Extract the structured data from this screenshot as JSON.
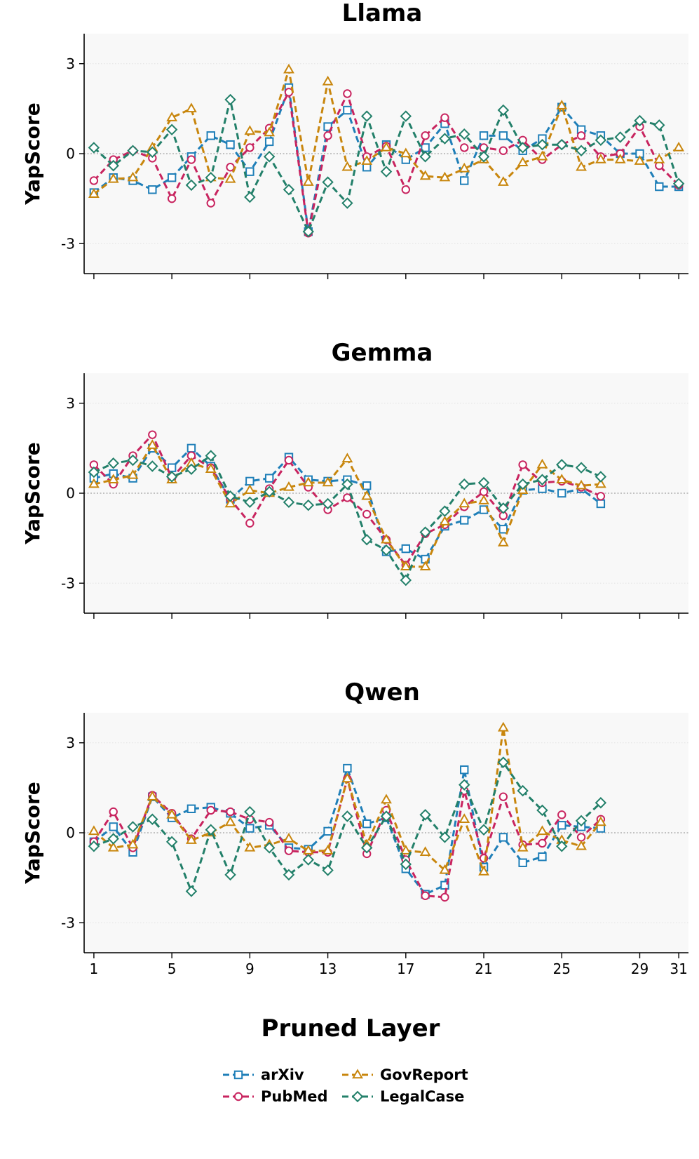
{
  "chart_data": [
    {
      "type": "line",
      "title": "Llama",
      "ylabel": "YapScore",
      "xlabel": "",
      "xlim": [
        0.5,
        31.5
      ],
      "ylim": [
        -4,
        4
      ],
      "yticks": [
        -3,
        0,
        3
      ],
      "ytick_labels": [
        "-3",
        "0",
        "3"
      ],
      "xticks": [
        1,
        5,
        9,
        13,
        17,
        21,
        25,
        29,
        31
      ],
      "xtick_labels": [],
      "zero_line": true,
      "grid": "horizontal-dotted",
      "series": [
        {
          "name": "arXiv",
          "color": "#1f7fb8",
          "marker": "square",
          "x": [
            1,
            2,
            3,
            4,
            5,
            6,
            7,
            8,
            9,
            10,
            11,
            12,
            13,
            14,
            15,
            16,
            17,
            18,
            19,
            20,
            21,
            22,
            23,
            24,
            25,
            26,
            27,
            28,
            29,
            30,
            31
          ],
          "values": [
            -1.3,
            -0.8,
            -0.9,
            -1.2,
            -0.8,
            -0.1,
            0.6,
            0.3,
            -0.6,
            0.4,
            2.2,
            -2.6,
            0.9,
            1.45,
            -0.45,
            0.3,
            -0.2,
            0.2,
            1.0,
            -0.9,
            0.6,
            0.6,
            0.1,
            0.5,
            1.55,
            0.8,
            0.6,
            0.0,
            0.0,
            -1.1,
            -1.1
          ]
        },
        {
          "name": "PubMed",
          "color": "#c8245f",
          "marker": "circle",
          "x": [
            1,
            2,
            3,
            4,
            5,
            6,
            7,
            8,
            9,
            10,
            11,
            12,
            13,
            14,
            15,
            16,
            17,
            18,
            19,
            20,
            21,
            22,
            23,
            24,
            25,
            26,
            27,
            28,
            29,
            30,
            31
          ],
          "values": [
            -0.9,
            -0.2,
            0.1,
            -0.15,
            -1.5,
            -0.2,
            -1.65,
            -0.45,
            0.2,
            0.85,
            2.05,
            -2.65,
            0.6,
            2.0,
            -0.1,
            0.25,
            -1.2,
            0.6,
            1.2,
            0.2,
            0.2,
            0.1,
            0.45,
            -0.2,
            0.3,
            0.6,
            -0.1,
            0.0,
            0.9,
            -0.4,
            -1.05
          ]
        },
        {
          "name": "GovReport",
          "color": "#c8860d",
          "marker": "triangle",
          "x": [
            1,
            2,
            3,
            4,
            5,
            6,
            7,
            8,
            9,
            10,
            11,
            12,
            13,
            14,
            15,
            16,
            17,
            18,
            19,
            20,
            21,
            22,
            23,
            24,
            25,
            26,
            27,
            28,
            29,
            30,
            31
          ],
          "values": [
            -1.35,
            -0.85,
            -0.8,
            0.2,
            1.2,
            1.5,
            -0.8,
            -0.85,
            0.75,
            0.7,
            2.8,
            -0.95,
            2.4,
            -0.45,
            -0.25,
            0.2,
            0.0,
            -0.75,
            -0.8,
            -0.5,
            -0.2,
            -0.95,
            -0.3,
            -0.1,
            1.6,
            -0.45,
            -0.2,
            -0.2,
            -0.25,
            -0.2,
            0.2
          ]
        },
        {
          "name": "LegalCase",
          "color": "#23806a",
          "marker": "diamond",
          "x": [
            1,
            2,
            3,
            4,
            5,
            6,
            7,
            8,
            9,
            10,
            11,
            12,
            13,
            14,
            15,
            16,
            17,
            18,
            19,
            20,
            21,
            22,
            23,
            24,
            25,
            26,
            27,
            28,
            29,
            30,
            31
          ],
          "values": [
            0.2,
            -0.4,
            0.1,
            0.05,
            0.8,
            -1.05,
            -0.8,
            1.8,
            -1.45,
            -0.1,
            -1.2,
            -2.6,
            -0.95,
            -1.65,
            1.25,
            -0.6,
            1.25,
            -0.1,
            0.5,
            0.65,
            -0.1,
            1.45,
            0.2,
            0.3,
            0.3,
            0.1,
            0.45,
            0.55,
            1.1,
            0.95,
            -1.0
          ]
        }
      ]
    },
    {
      "type": "line",
      "title": "Gemma",
      "ylabel": "YapScore",
      "xlabel": "",
      "xlim": [
        0.5,
        31.5
      ],
      "ylim": [
        -4,
        4
      ],
      "yticks": [
        -3,
        0,
        3
      ],
      "ytick_labels": [
        "-3",
        "0",
        "3"
      ],
      "xticks": [
        1,
        5,
        9,
        13,
        17,
        21,
        25,
        29,
        31
      ],
      "xtick_labels": [],
      "zero_line": true,
      "grid": "horizontal-dotted",
      "series": [
        {
          "name": "arXiv",
          "color": "#1f7fb8",
          "marker": "square",
          "x": [
            1,
            2,
            3,
            4,
            5,
            6,
            7,
            8,
            9,
            10,
            11,
            12,
            13,
            14,
            15,
            16,
            17,
            18,
            19,
            20,
            21,
            22,
            23,
            24,
            25,
            26,
            27
          ],
          "values": [
            0.5,
            0.65,
            0.5,
            1.5,
            0.85,
            1.5,
            0.9,
            -0.2,
            0.4,
            0.5,
            1.2,
            0.45,
            0.4,
            0.45,
            0.25,
            -1.95,
            -1.85,
            -2.2,
            -1.1,
            -0.9,
            -0.55,
            -1.2,
            0.1,
            0.15,
            0.0,
            0.15,
            -0.35
          ]
        },
        {
          "name": "PubMed",
          "color": "#c8245f",
          "marker": "circle",
          "x": [
            1,
            2,
            3,
            4,
            5,
            6,
            7,
            8,
            9,
            10,
            11,
            12,
            13,
            14,
            15,
            16,
            17,
            18,
            19,
            20,
            21,
            22,
            23,
            24,
            25,
            26,
            27
          ],
          "values": [
            0.95,
            0.3,
            1.25,
            1.95,
            0.5,
            1.25,
            0.85,
            -0.2,
            -1.0,
            0.15,
            1.1,
            0.2,
            -0.55,
            -0.15,
            -0.7,
            -1.55,
            -2.4,
            -1.35,
            -1.05,
            -0.45,
            0.05,
            -0.75,
            0.95,
            0.35,
            0.4,
            0.2,
            -0.1
          ]
        },
        {
          "name": "GovReport",
          "color": "#c8860d",
          "marker": "triangle",
          "x": [
            1,
            2,
            3,
            4,
            5,
            6,
            7,
            8,
            9,
            10,
            11,
            12,
            13,
            14,
            15,
            16,
            17,
            18,
            19,
            20,
            21,
            22,
            23,
            24,
            25,
            26,
            27
          ],
          "values": [
            0.3,
            0.45,
            0.6,
            1.6,
            0.45,
            1.0,
            0.8,
            -0.35,
            0.1,
            0.0,
            0.2,
            0.35,
            0.35,
            1.15,
            -0.1,
            -1.55,
            -2.45,
            -2.45,
            -0.95,
            -0.35,
            -0.25,
            -1.65,
            0.1,
            0.95,
            0.45,
            0.25,
            0.3
          ]
        },
        {
          "name": "LegalCase",
          "color": "#23806a",
          "marker": "diamond",
          "x": [
            1,
            2,
            3,
            4,
            5,
            6,
            7,
            8,
            9,
            10,
            11,
            12,
            13,
            14,
            15,
            16,
            17,
            18,
            19,
            20,
            21,
            22,
            23,
            24,
            25,
            26,
            27
          ],
          "values": [
            0.7,
            1.0,
            1.1,
            0.9,
            0.55,
            0.8,
            1.25,
            -0.1,
            -0.3,
            0.05,
            -0.3,
            -0.4,
            -0.35,
            0.3,
            -1.55,
            -1.9,
            -2.9,
            -1.3,
            -0.6,
            0.3,
            0.35,
            -0.5,
            0.3,
            0.45,
            0.95,
            0.85,
            0.55
          ]
        }
      ]
    },
    {
      "type": "line",
      "title": "Qwen",
      "ylabel": "YapScore",
      "xlabel": "Pruned Layer",
      "xlim": [
        0.5,
        31.5
      ],
      "ylim": [
        -4,
        4
      ],
      "yticks": [
        -3,
        0,
        3
      ],
      "ytick_labels": [
        "-3",
        "0",
        "3"
      ],
      "xticks": [
        1,
        5,
        9,
        13,
        17,
        21,
        25,
        29,
        31
      ],
      "xtick_labels": [
        "1",
        "5",
        "9",
        "13",
        "17",
        "21",
        "25",
        "29",
        "31"
      ],
      "zero_line": true,
      "grid": "horizontal-dotted",
      "series": [
        {
          "name": "arXiv",
          "color": "#1f7fb8",
          "marker": "square",
          "x": [
            1,
            2,
            3,
            4,
            5,
            6,
            7,
            8,
            9,
            10,
            11,
            12,
            13,
            14,
            15,
            16,
            17,
            18,
            19,
            20,
            21,
            22,
            23,
            24,
            25,
            26,
            27
          ],
          "values": [
            -0.3,
            0.2,
            -0.65,
            1.2,
            0.5,
            0.8,
            0.85,
            0.65,
            0.15,
            0.25,
            -0.5,
            -0.55,
            0.05,
            2.15,
            0.3,
            0.5,
            -1.2,
            -2.05,
            -1.75,
            2.1,
            -1.15,
            -0.15,
            -1.0,
            -0.8,
            0.25,
            0.2,
            0.15
          ]
        },
        {
          "name": "PubMed",
          "color": "#c8245f",
          "marker": "circle",
          "x": [
            1,
            2,
            3,
            4,
            5,
            6,
            7,
            8,
            9,
            10,
            11,
            12,
            13,
            14,
            15,
            16,
            17,
            18,
            19,
            20,
            21,
            22,
            23,
            24,
            25,
            26,
            27
          ],
          "values": [
            -0.3,
            0.7,
            -0.5,
            1.25,
            0.65,
            -0.2,
            0.75,
            0.7,
            0.45,
            0.35,
            -0.6,
            -0.65,
            -0.65,
            1.8,
            -0.7,
            0.75,
            -0.9,
            -2.1,
            -2.15,
            1.4,
            -0.85,
            1.2,
            -0.4,
            -0.35,
            0.6,
            -0.15,
            0.45
          ]
        },
        {
          "name": "GovReport",
          "color": "#c8860d",
          "marker": "triangle",
          "x": [
            1,
            2,
            3,
            4,
            5,
            6,
            7,
            8,
            9,
            10,
            11,
            12,
            13,
            14,
            15,
            16,
            17,
            18,
            19,
            20,
            21,
            22,
            23,
            24,
            25,
            26,
            27
          ],
          "values": [
            0.05,
            -0.5,
            -0.4,
            1.2,
            0.6,
            -0.25,
            0.0,
            0.35,
            -0.5,
            -0.4,
            -0.2,
            -0.6,
            -0.6,
            1.8,
            -0.4,
            1.1,
            -0.6,
            -0.65,
            -1.25,
            0.45,
            -1.3,
            3.5,
            -0.5,
            0.05,
            -0.25,
            -0.45,
            0.35
          ]
        },
        {
          "name": "LegalCase",
          "color": "#23806a",
          "marker": "diamond",
          "x": [
            1,
            2,
            3,
            4,
            5,
            6,
            7,
            8,
            9,
            10,
            11,
            12,
            13,
            14,
            15,
            16,
            17,
            18,
            19,
            20,
            21,
            22,
            23,
            24,
            25,
            26,
            27
          ],
          "values": [
            -0.45,
            -0.2,
            0.2,
            0.45,
            -0.3,
            -1.95,
            0.1,
            -1.4,
            0.7,
            -0.5,
            -1.4,
            -0.9,
            -1.25,
            0.55,
            -0.5,
            0.55,
            -1.05,
            0.6,
            -0.15,
            1.6,
            0.1,
            2.35,
            1.4,
            0.75,
            -0.45,
            0.4,
            1.0
          ]
        }
      ]
    }
  ],
  "legend": {
    "placement": "bottom-center",
    "items": [
      "arXiv",
      "PubMed",
      "GovReport",
      "LegalCase"
    ]
  }
}
